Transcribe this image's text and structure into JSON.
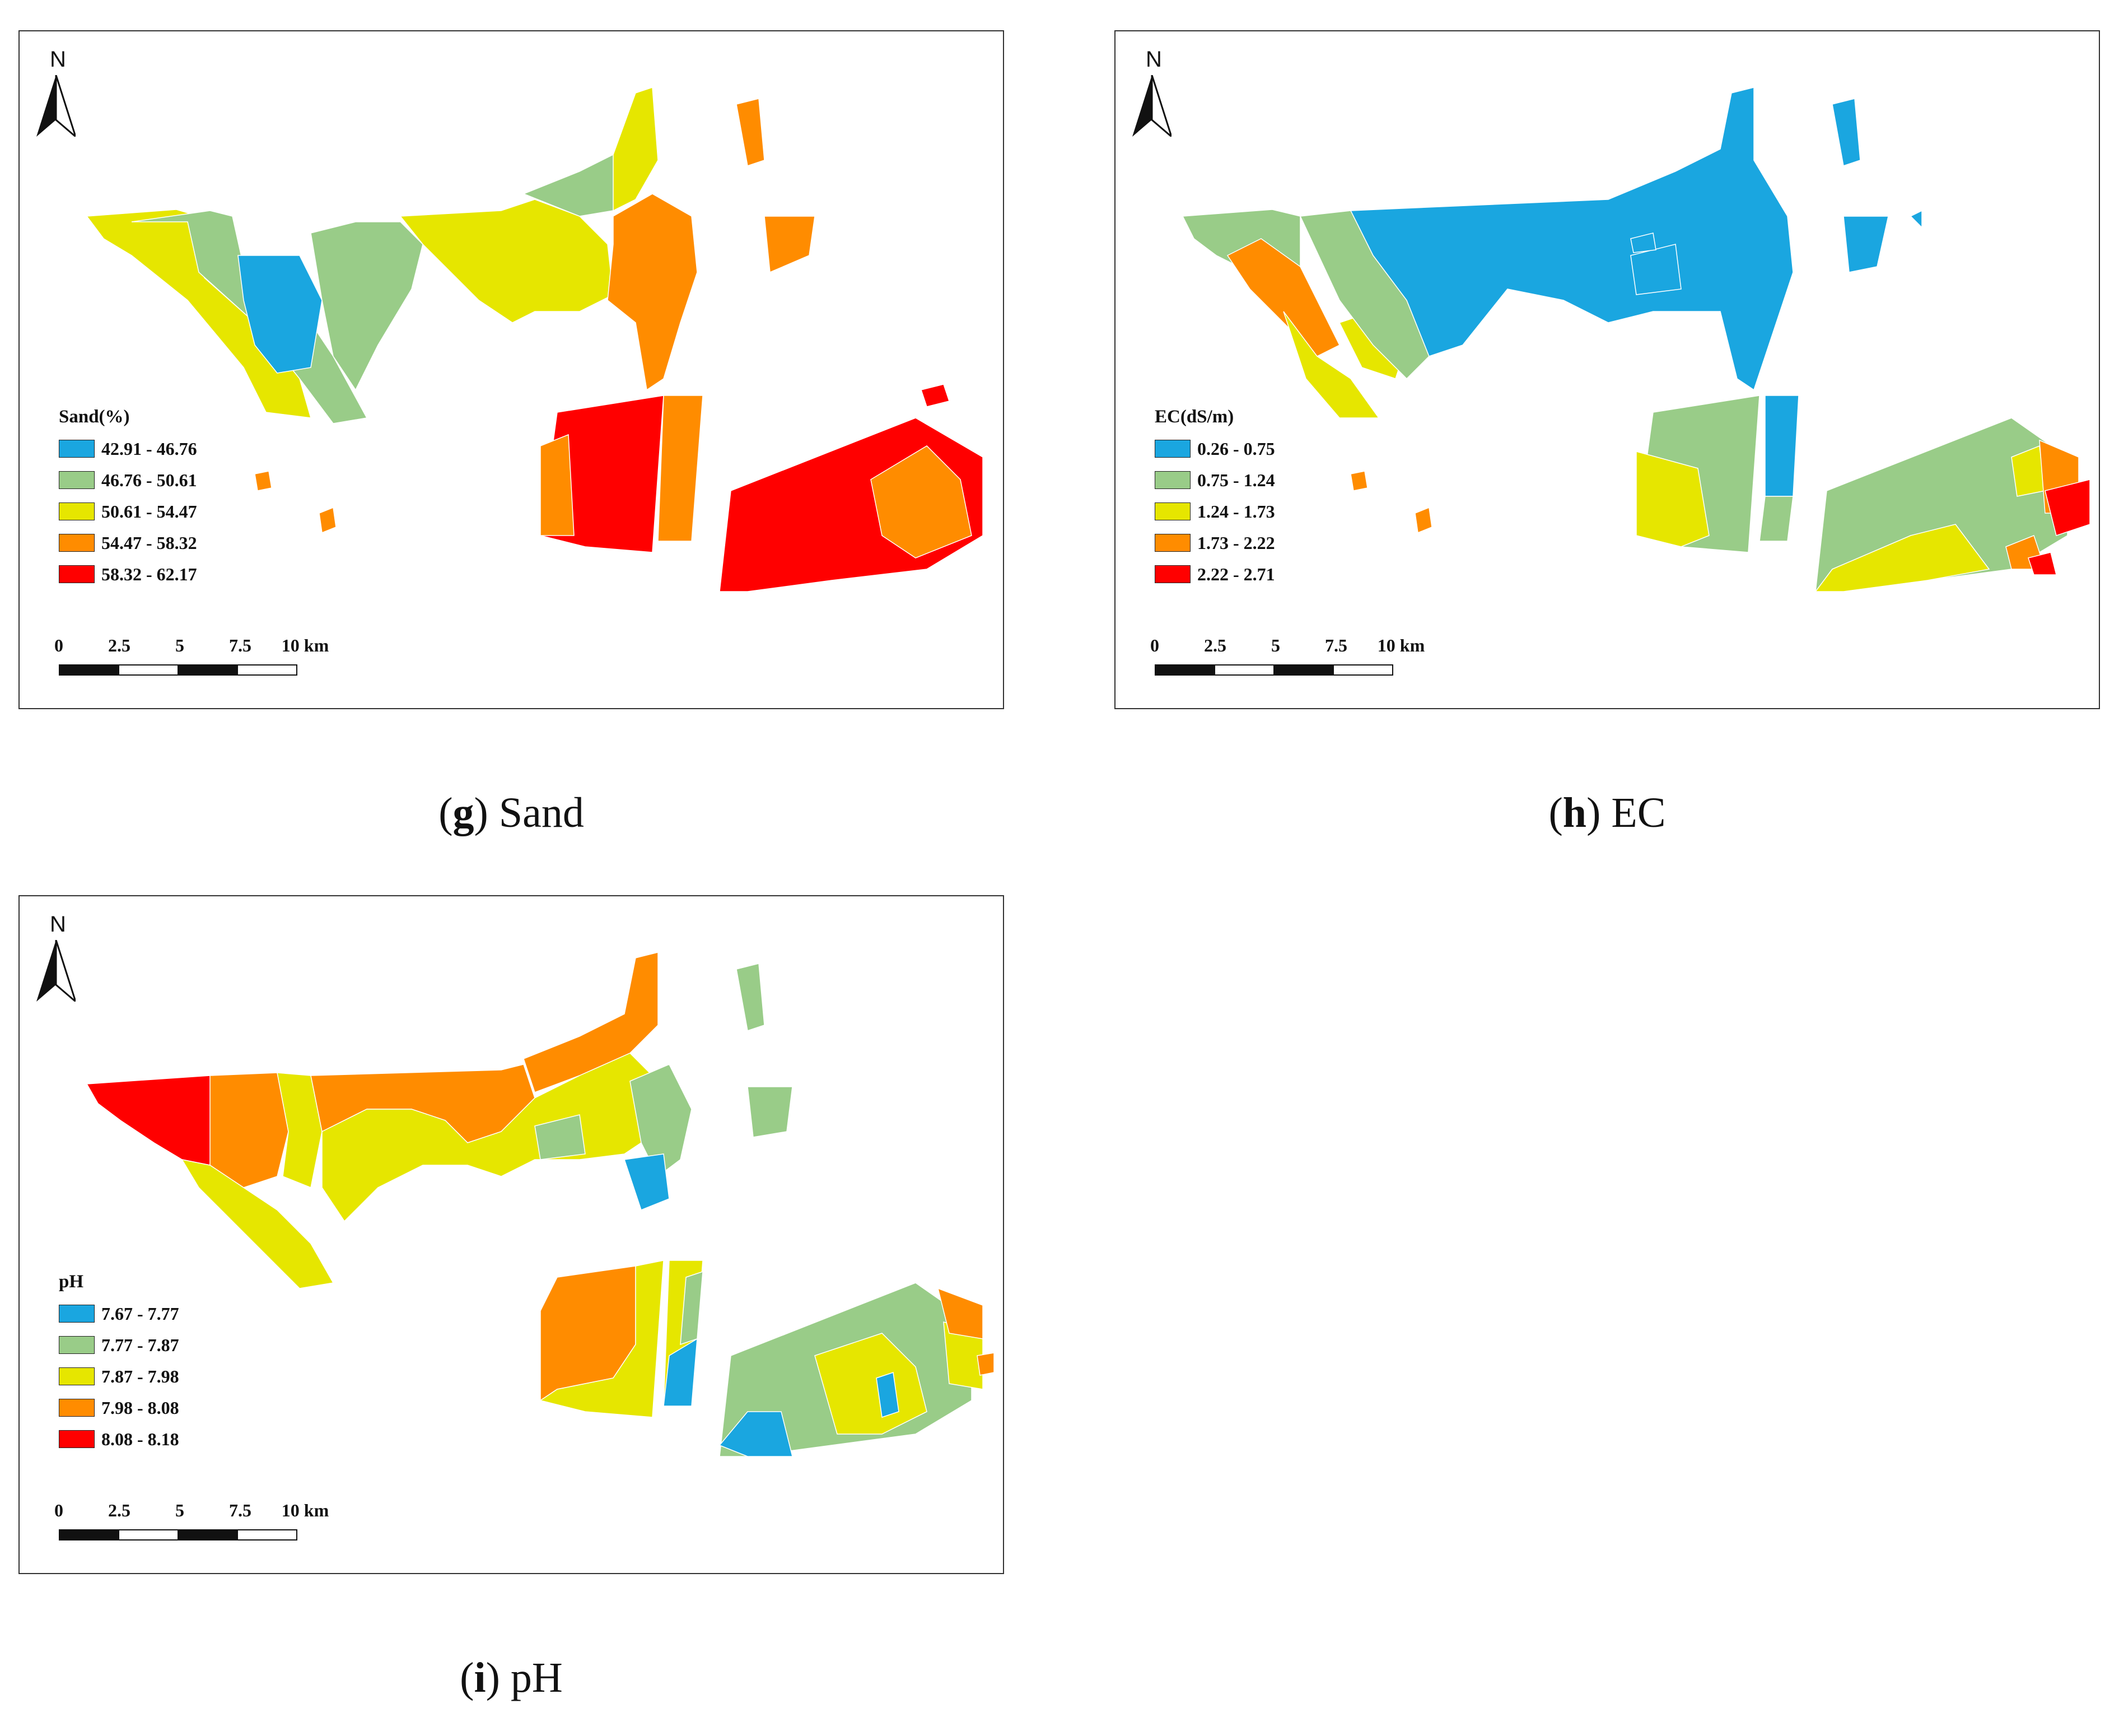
{
  "colors": {
    "blue": "#1aa6e0",
    "green": "#99cc88",
    "yellow": "#e6e600",
    "orange": "#ff8c00",
    "red": "#ff0000"
  },
  "north_label": "N",
  "scale": {
    "labels": [
      "0",
      "2.5",
      "5",
      "7.5",
      "10 km"
    ]
  },
  "panels": {
    "g": {
      "caption_letter": "g",
      "caption_text": "Sand",
      "legend_title": "Sand(%)",
      "legend": [
        "42.91 - 46.76",
        "46.76 - 50.61",
        "50.61 - 54.47",
        "54.47 - 58.32",
        "58.32 - 62.17"
      ],
      "zones": [
        "yellow",
        "green",
        "blue",
        "green",
        "yellow",
        "green",
        "yellow",
        "orange",
        "orange",
        "red",
        "orange",
        "orange",
        "red",
        "orange",
        "red"
      ]
    },
    "h": {
      "caption_letter": "h",
      "caption_text": "EC",
      "legend_title": "EC(dS/m)",
      "legend": [
        "0.26 - 0.75",
        "0.75 - 1.24",
        "1.24 - 1.73",
        "1.73 - 2.22",
        "2.22 - 2.71"
      ],
      "zones": [
        "green",
        "orange",
        "yellow",
        "green",
        "blue",
        "blue",
        "blue",
        "blue",
        "green",
        "yellow",
        "blue",
        "green",
        "green",
        "yellow",
        "orange",
        "red",
        "orange"
      ]
    },
    "i": {
      "caption_letter": "i",
      "caption_text": "pH",
      "legend_title": "pH",
      "legend": [
        "7.67 - 7.77",
        "7.77 - 7.87",
        "7.87 - 7.98",
        "7.98 - 8.08",
        "8.08 - 8.18"
      ],
      "zones": [
        "red",
        "orange",
        "yellow",
        "orange",
        "orange",
        "yellow",
        "green",
        "blue",
        "green",
        "orange",
        "yellow",
        "yellow",
        "green",
        "blue",
        "green",
        "yellow",
        "orange",
        "blue"
      ]
    }
  }
}
